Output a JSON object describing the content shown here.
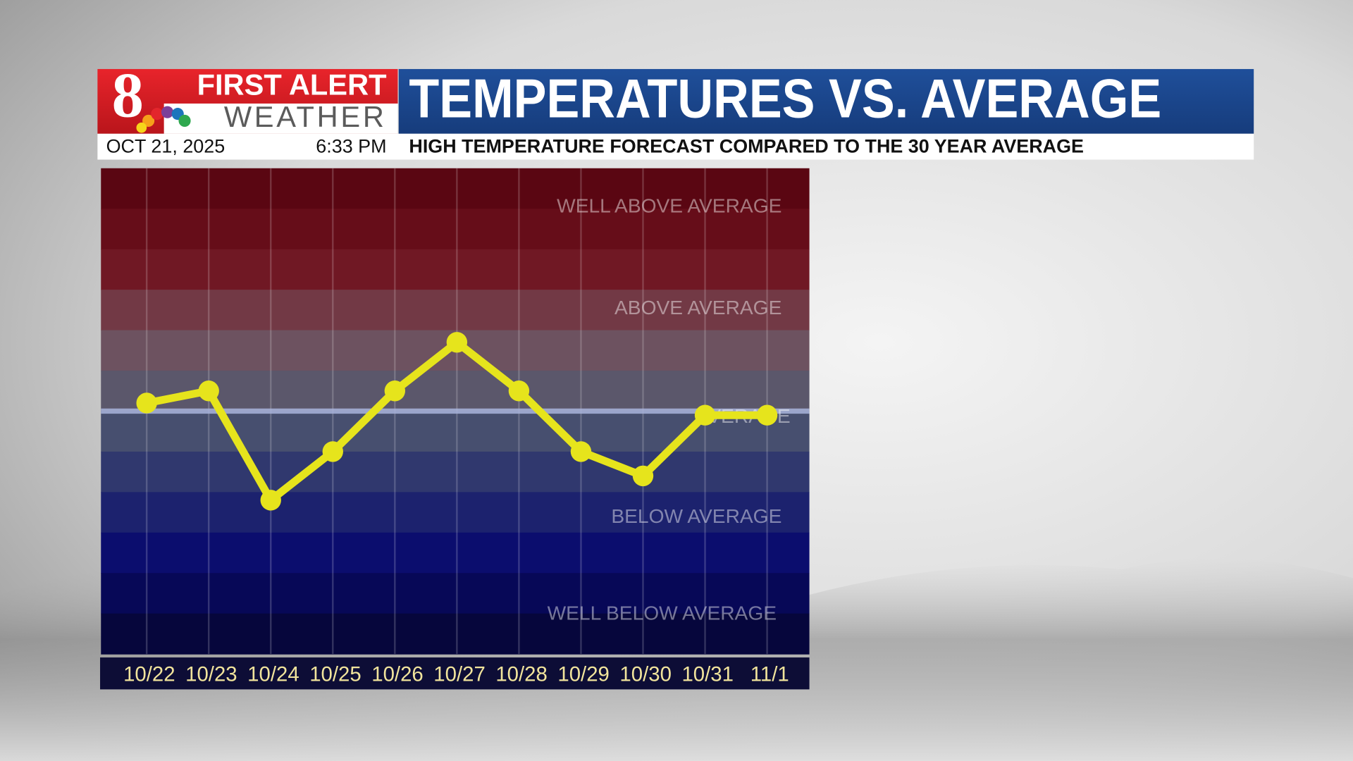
{
  "header": {
    "logo_number": "8",
    "brand_top": "FIRST ALERT",
    "brand_bottom": "WEATHER",
    "date": "OCT 21, 2025",
    "time": "6:33 PM"
  },
  "chart_data": {
    "type": "line",
    "title": "TEMPERATURES VS. AVERAGE",
    "subtitle": "HIGH TEMPERATURE FORECAST COMPARED TO THE 30 YEAR AVERAGE",
    "categories": [
      "10/22",
      "10/23",
      "10/24",
      "10/25",
      "10/26",
      "10/27",
      "10/28",
      "10/29",
      "10/30",
      "10/31",
      "11/1"
    ],
    "values": [
      0.2,
      0.5,
      -2.2,
      -1.0,
      0.5,
      1.7,
      0.5,
      -1.0,
      -1.6,
      -0.1,
      -0.1
    ],
    "color": "#e6e41c",
    "ylim": [
      -6,
      6
    ],
    "annotations": [
      "WELL ABOVE AVERAGE",
      "ABOVE AVERAGE",
      "AVERAGE",
      "BELOW AVERAGE",
      "WELL BELOW AVERAGE"
    ]
  }
}
